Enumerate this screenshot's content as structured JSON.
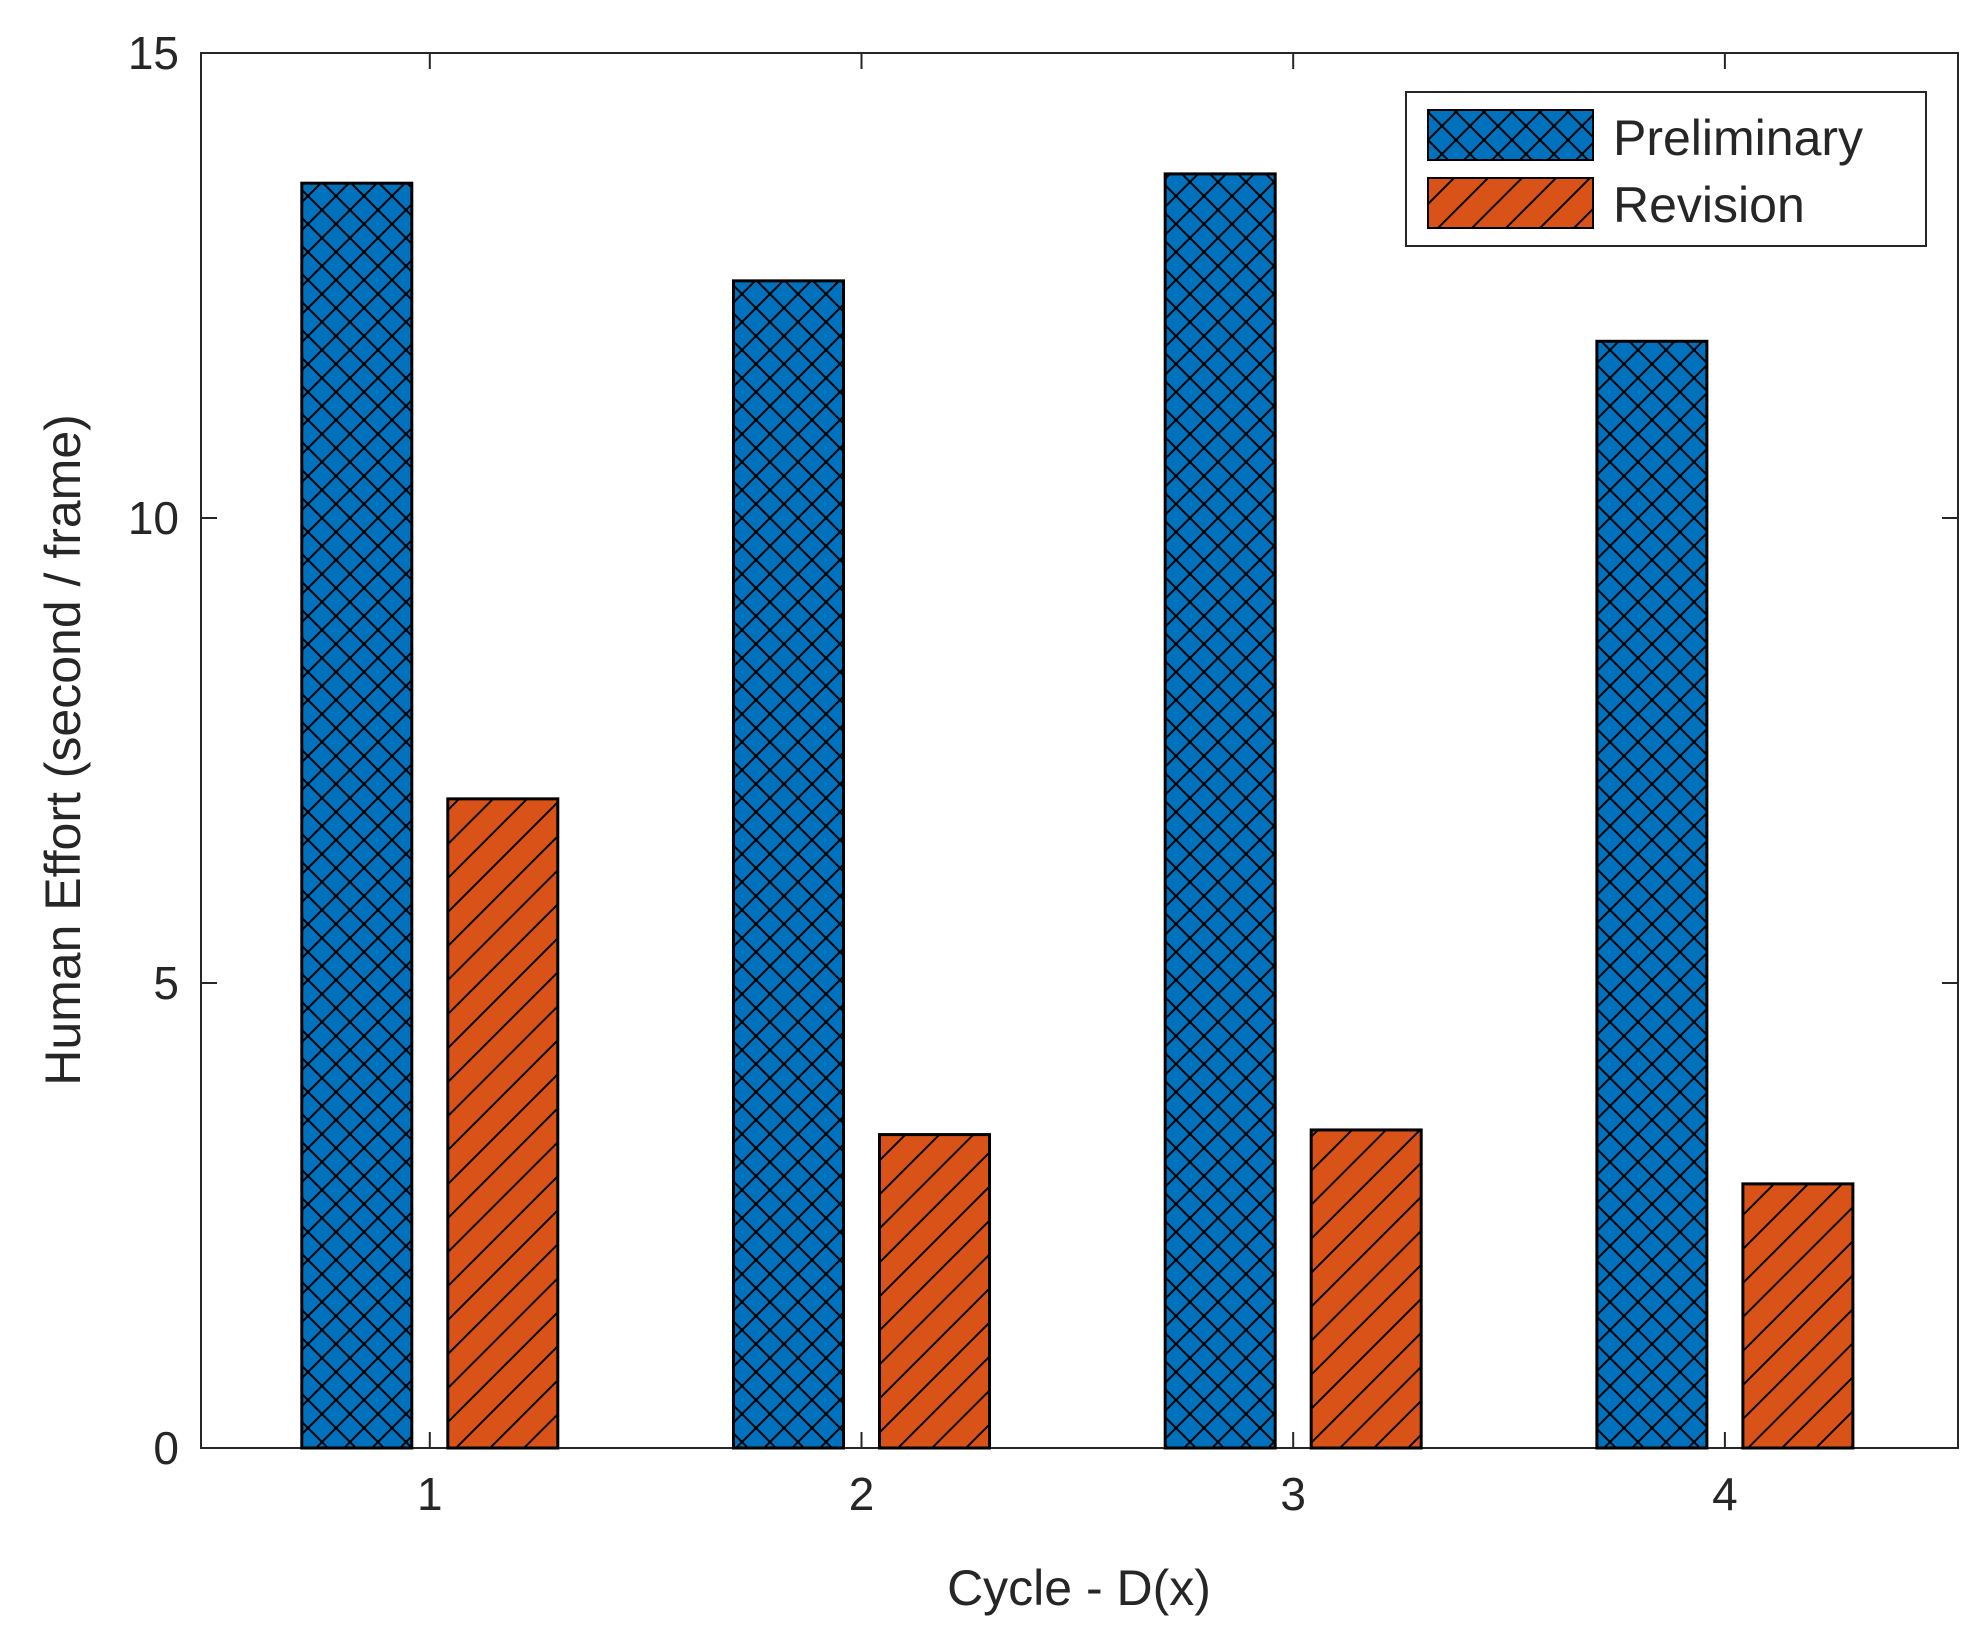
{
  "chart_data": {
    "type": "bar",
    "title": "",
    "xlabel": "Cycle - D(x)",
    "ylabel": "Human Effort (second / frame)",
    "categories": [
      "1",
      "2",
      "3",
      "4"
    ],
    "ylim": [
      0,
      15
    ],
    "yticks": [
      "0",
      "5",
      "10",
      "15"
    ],
    "grid": false,
    "legend_position": "top-right",
    "series": [
      {
        "name": "Preliminary",
        "values": [
          13.6,
          12.55,
          13.7,
          11.9
        ],
        "color": "#0072BD",
        "pattern": "crosshatch"
      },
      {
        "name": "Revision",
        "values": [
          6.98,
          3.37,
          3.42,
          2.84
        ],
        "color": "#D95319",
        "pattern": "diagonal"
      }
    ]
  }
}
